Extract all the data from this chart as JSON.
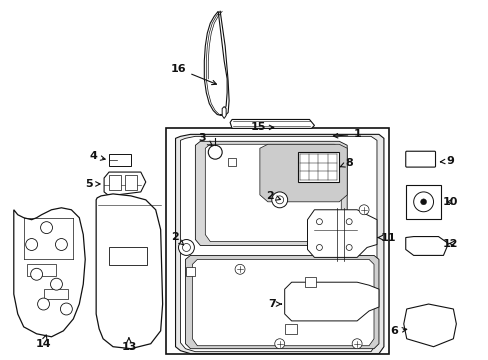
{
  "bg_color": "#ffffff",
  "line_color": "#111111",
  "text_color": "#111111",
  "figsize": [
    4.89,
    3.6
  ],
  "dpi": 100
}
